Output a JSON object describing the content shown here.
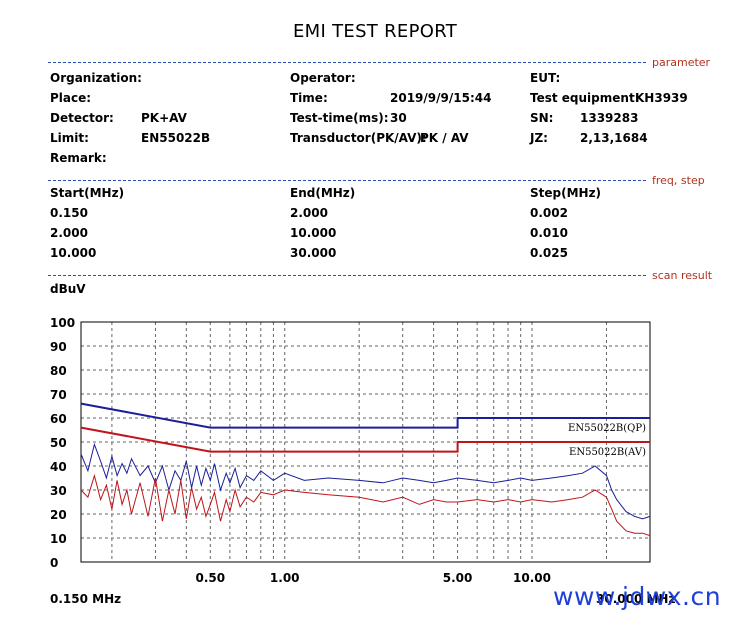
{
  "report": {
    "title": "EMI TEST REPORT"
  },
  "sections": {
    "parameter": "parameter",
    "freq_step": "freq, step",
    "scan_result": "scan result"
  },
  "params": {
    "organization_label": "Organization:",
    "place_label": "Place:",
    "detector_label": "Detector:",
    "detector_value": "PK+AV",
    "limit_label": "Limit:",
    "limit_value": "EN55022B",
    "remark_label": "Remark:",
    "operator_label": "Operator:",
    "time_label": "Time:",
    "time_value": "2019/9/9/15:44",
    "test_time_label": "Test-time(ms):",
    "test_time_value": "30",
    "transductor_label": "Transductor(PK/AV):",
    "transductor_value": "PK  /  AV",
    "eut_label": "EUT:",
    "test_equipment_label": "Test equipment:",
    "test_equipment_value": "KH3939",
    "sn_label": "SN:",
    "sn_value": "1339283",
    "jz_label": "JZ:",
    "jz_value": "2,13,1684"
  },
  "freq_table": {
    "headers": [
      "Start(MHz)",
      "End(MHz)",
      "Step(MHz)"
    ],
    "rows": [
      [
        "0.150",
        "2.000",
        "0.002"
      ],
      [
        "2.000",
        "10.000",
        "0.010"
      ],
      [
        "10.000",
        "30.000",
        "0.025"
      ]
    ]
  },
  "watermark": "www.jdwx.cn",
  "chart_data": {
    "type": "line",
    "ylabel": "dBuV",
    "ylim": [
      0,
      100
    ],
    "y_ticks": [
      0,
      10,
      20,
      30,
      40,
      50,
      60,
      70,
      80,
      90,
      100
    ],
    "y_tick_labels": [
      "0",
      "10",
      "20",
      "30",
      "40",
      "50",
      "60",
      "70",
      "80",
      "90",
      "100"
    ],
    "x_scale": "log",
    "xlim": [
      0.15,
      30
    ],
    "x_tick_labels": [
      {
        "x": 0.5,
        "label": "0.50"
      },
      {
        "x": 1.0,
        "label": "1.00"
      },
      {
        "x": 5.0,
        "label": "5.00"
      },
      {
        "x": 10.0,
        "label": "10.00"
      }
    ],
    "x_start_label": "0.150 MHz",
    "x_end_label": "30.000 MHz",
    "grid": true,
    "limit_lines": [
      {
        "name": "EN55022B(QP)",
        "color": "#1a1f9a",
        "points": [
          [
            0.15,
            66
          ],
          [
            0.5,
            56
          ],
          [
            5.0,
            56
          ],
          [
            5.0,
            60
          ],
          [
            30,
            60
          ]
        ]
      },
      {
        "name": "EN55022B(AV)",
        "color": "#c0141b",
        "points": [
          [
            0.15,
            56
          ],
          [
            0.5,
            46
          ],
          [
            5.0,
            46
          ],
          [
            5.0,
            50
          ],
          [
            30,
            50
          ]
        ]
      }
    ],
    "series": [
      {
        "color": "#1a1f9a",
        "x": [
          0.15,
          0.16,
          0.17,
          0.18,
          0.19,
          0.2,
          0.21,
          0.22,
          0.23,
          0.24,
          0.26,
          0.28,
          0.3,
          0.32,
          0.34,
          0.36,
          0.38,
          0.4,
          0.42,
          0.44,
          0.46,
          0.48,
          0.5,
          0.52,
          0.55,
          0.58,
          0.6,
          0.63,
          0.66,
          0.7,
          0.75,
          0.8,
          0.9,
          1.0,
          1.2,
          1.5,
          2.0,
          2.5,
          3.0,
          3.5,
          4.0,
          4.5,
          5.0,
          6.0,
          7.0,
          8.0,
          9.0,
          10.0,
          12.0,
          14.0,
          16.0,
          18.0,
          20.0,
          21.0,
          22.0,
          24.0,
          26.0,
          28.0,
          30.0
        ],
        "y": [
          45,
          38,
          49,
          42,
          35,
          44,
          36,
          41,
          37,
          43,
          36,
          40,
          33,
          40,
          30,
          38,
          34,
          42,
          31,
          40,
          32,
          39,
          34,
          41,
          30,
          37,
          33,
          39,
          31,
          36,
          34,
          38,
          34,
          37,
          34,
          35,
          34,
          33,
          35,
          34,
          33,
          34,
          35,
          34,
          33,
          34,
          35,
          34,
          35,
          36,
          37,
          40,
          36,
          30,
          26,
          21,
          19,
          18,
          19
        ]
      },
      {
        "color": "#c0141b",
        "x": [
          0.15,
          0.16,
          0.17,
          0.18,
          0.19,
          0.2,
          0.21,
          0.22,
          0.23,
          0.24,
          0.26,
          0.28,
          0.3,
          0.32,
          0.34,
          0.36,
          0.38,
          0.4,
          0.42,
          0.44,
          0.46,
          0.48,
          0.5,
          0.52,
          0.55,
          0.58,
          0.6,
          0.63,
          0.66,
          0.7,
          0.75,
          0.8,
          0.9,
          1.0,
          1.2,
          1.5,
          2.0,
          2.5,
          3.0,
          3.5,
          4.0,
          4.5,
          5.0,
          6.0,
          7.0,
          8.0,
          9.0,
          10.0,
          12.0,
          14.0,
          16.0,
          18.0,
          20.0,
          21.0,
          22.0,
          24.0,
          26.0,
          28.0,
          30.0
        ],
        "y": [
          30,
          27,
          36,
          26,
          32,
          22,
          34,
          24,
          30,
          20,
          33,
          19,
          35,
          17,
          30,
          20,
          34,
          18,
          31,
          22,
          27,
          19,
          24,
          29,
          17,
          26,
          21,
          30,
          23,
          27,
          25,
          29,
          28,
          30,
          29,
          28,
          27,
          25,
          27,
          24,
          26,
          25,
          25,
          26,
          25,
          26,
          25,
          26,
          25,
          26,
          27,
          30,
          27,
          22,
          17,
          13,
          12,
          12,
          11
        ]
      }
    ]
  }
}
